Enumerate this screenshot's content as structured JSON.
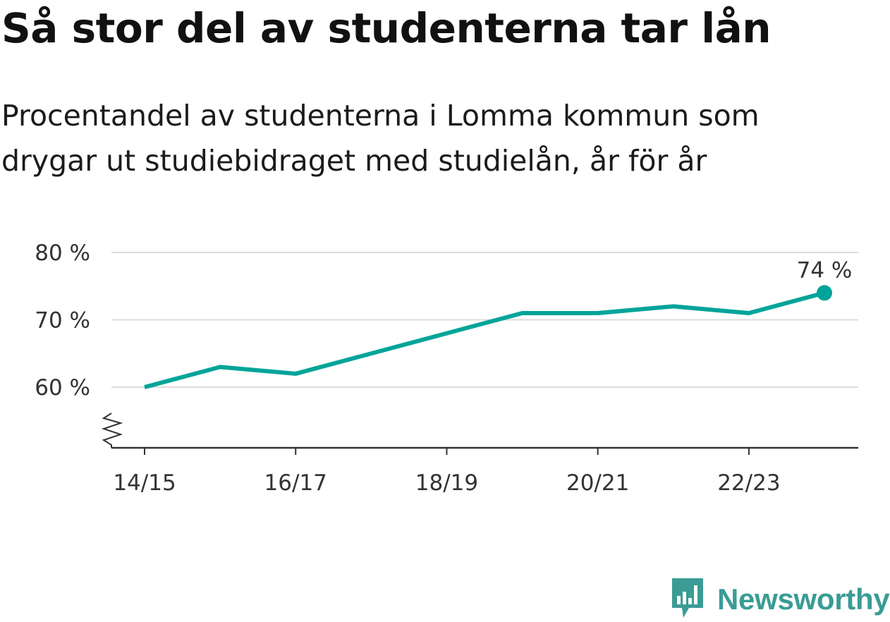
{
  "title": "Så stor del av studenterna tar lån",
  "subtitle": "Procentandel av studenterna i Lomma kommun som drygar ut studiebidraget med studielån, år för år",
  "colors": {
    "line": "#00a499",
    "grid": "#dddddd",
    "axis": "#333333",
    "brand": "#3a9c95"
  },
  "brand": {
    "name": "Newsworthy",
    "icon": "bar-chart-speech-bubble-icon"
  },
  "chart_data": {
    "type": "line",
    "title": "Så stor del av studenterna tar lån",
    "subtitle": "Procentandel av studenterna i Lomma kommun som drygar ut studiebidraget med studielån, år för år",
    "x": [
      "14/15",
      "15/16",
      "16/17",
      "17/18",
      "18/19",
      "19/20",
      "20/21",
      "21/22",
      "22/23",
      "23/24"
    ],
    "series": [
      {
        "values": [
          60,
          63,
          62,
          65,
          68,
          71,
          71,
          72,
          71,
          74
        ]
      }
    ],
    "x_ticks": [
      "14/15",
      "16/17",
      "18/19",
      "20/21",
      "22/23"
    ],
    "y_ticks": [
      60,
      70,
      80
    ],
    "y_tick_labels": [
      "60 %",
      "70 %",
      "80 %"
    ],
    "ylim": [
      51,
      80
    ],
    "y_axis_break": true,
    "grid": true,
    "annotation": {
      "label": "74 %",
      "x": "23/24",
      "y": 74
    }
  }
}
